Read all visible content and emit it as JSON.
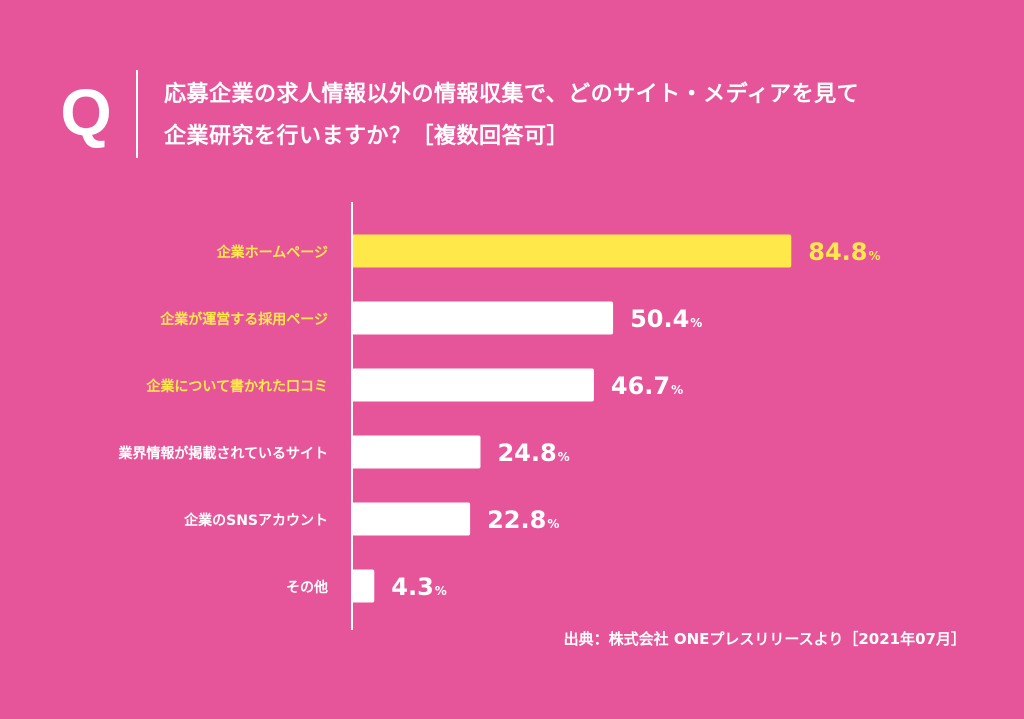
{
  "question": {
    "mark": "Q",
    "line1": "応募企業の求人情報以外の情報収集で、どのサイト・メディアを見て",
    "line2": "企業研究を行いますか？［複数回答可］"
  },
  "source": "出典：株式会社 ONEプレスリリースより［2021年07月］",
  "colors": {
    "background": "#E6559A",
    "bar_top": "#FFE94A",
    "bar": "#FFFFFF",
    "label_highlight": "#FFE94A",
    "label": "#FFFFFF"
  },
  "chart_data": {
    "type": "bar",
    "orientation": "horizontal",
    "categories": [
      "企業ホームページ",
      "企業が運営する採用ページ",
      "企業について書かれた口コミ",
      "業界情報が掲載されているサイト",
      "企業のSNSアカウント",
      "その他"
    ],
    "values": [
      84.8,
      50.4,
      46.7,
      24.8,
      22.8,
      4.3
    ],
    "value_labels": [
      "84.8",
      "50.4",
      "46.7",
      "24.8",
      "22.8",
      "4.3"
    ],
    "unit": "%",
    "highlighted_label_indices": [
      0,
      1,
      2
    ],
    "highlighted_bar_index": 0,
    "xlim": [
      0,
      100
    ],
    "grid": false,
    "legend": "none"
  }
}
